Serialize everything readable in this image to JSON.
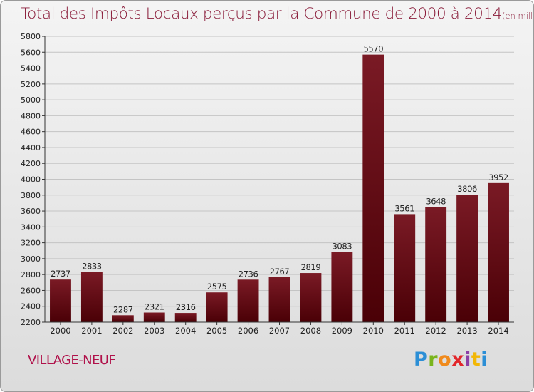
{
  "title": "Total des Impôts Locaux perçus par la Commune de 2000 à 2014",
  "title_unit": "(en milliers d'€)",
  "commune": "VILLAGE-NEUF",
  "logo": {
    "letters": [
      "P",
      "r",
      "o",
      "x",
      "i",
      "t",
      "i"
    ]
  },
  "chart_data": {
    "type": "bar",
    "title": "Total des Impôts Locaux perçus par la Commune de 2000 à 2014",
    "subtitle": "(en milliers d'€)",
    "xlabel": "",
    "ylabel": "",
    "categories": [
      "2000",
      "2001",
      "2002",
      "2003",
      "2004",
      "2005",
      "2006",
      "2007",
      "2008",
      "2009",
      "2010",
      "2011",
      "2012",
      "2013",
      "2014"
    ],
    "values": [
      2737,
      2833,
      2287,
      2321,
      2316,
      2575,
      2736,
      2767,
      2819,
      3083,
      5570,
      3561,
      3648,
      3806,
      3952
    ],
    "ylim": [
      2200,
      5800
    ],
    "yticks": [
      2200,
      2400,
      2600,
      2800,
      3000,
      3200,
      3400,
      3600,
      3800,
      4000,
      4200,
      4400,
      4600,
      4800,
      5000,
      5200,
      5400,
      5600,
      5800
    ],
    "grid": true,
    "bar_color": "#7a1a25",
    "bar_color_dark": "#4a0006"
  }
}
